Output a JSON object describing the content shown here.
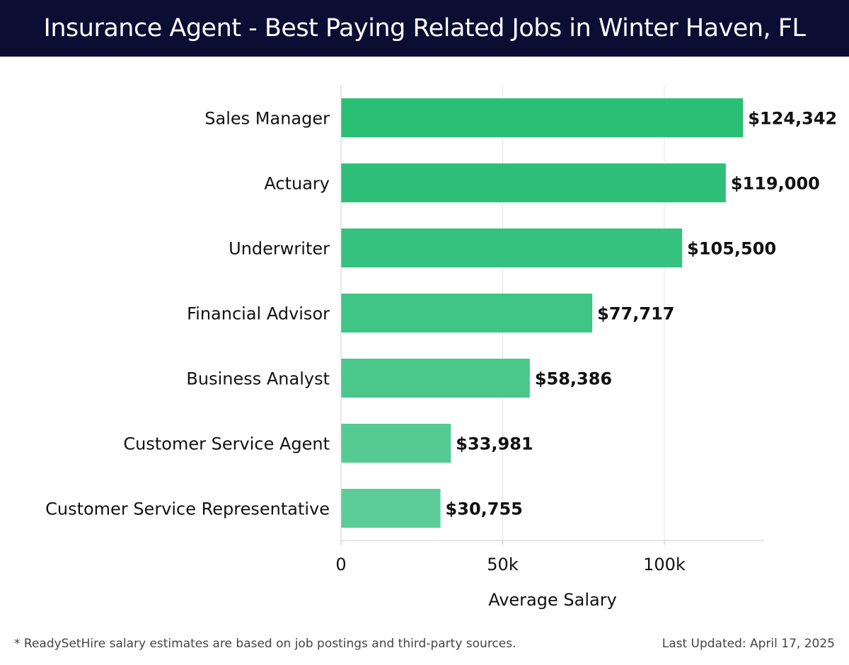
{
  "header": {
    "title": "Insurance Agent - Best Paying Related Jobs in Winter Haven, FL"
  },
  "chart_data": {
    "type": "bar",
    "orientation": "horizontal",
    "title": "Insurance Agent - Best Paying Related Jobs in Winter Haven, FL",
    "categories": [
      "Sales Manager",
      "Actuary",
      "Underwriter",
      "Financial Advisor",
      "Business Analyst",
      "Customer Service Agent",
      "Customer Service Representative"
    ],
    "values": [
      124342,
      119000,
      105500,
      77717,
      58386,
      33981,
      30755
    ],
    "value_labels": [
      "$124,342",
      "$119,000",
      "$105,500",
      "$77,717",
      "$58,386",
      "$33,981",
      "$30,755"
    ],
    "xlabel": "Average Salary",
    "ylabel": "",
    "xlim": [
      0,
      130000
    ],
    "xticks": [
      0,
      50000,
      100000
    ],
    "xtick_labels": [
      "0",
      "50k",
      "100k"
    ],
    "grid": true,
    "colors": [
      "#2bbf75",
      "#2ec078",
      "#34c27e",
      "#3fc585",
      "#4ac78b",
      "#55cb93",
      "#5ccd98"
    ]
  },
  "footer": {
    "note": "* ReadySetHire salary estimates are based on job postings and third-party sources.",
    "updated": "Last Updated: April 17, 2025"
  }
}
